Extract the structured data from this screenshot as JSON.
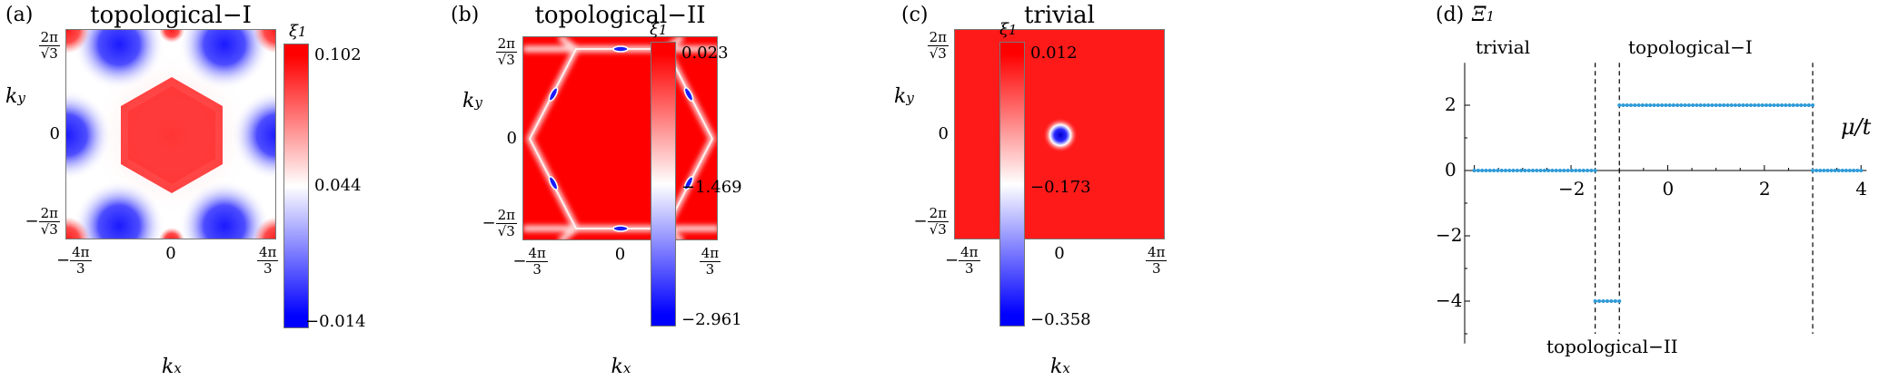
{
  "panels": [
    {
      "label": "(a)",
      "title": "topological−I",
      "cbar_symbol": "ξ",
      "cbar_sub": "1",
      "cbar_ticks": [
        "0.102",
        "0.044",
        "−0.014"
      ]
    },
    {
      "label": "(b)",
      "title": "topological−II",
      "cbar_symbol": "ξ",
      "cbar_sub": "1",
      "cbar_ticks": [
        "0.023",
        "−1.469",
        "−2.961"
      ]
    },
    {
      "label": "(c)",
      "title": "trivial",
      "cbar_symbol": "ξ",
      "cbar_sub": "1",
      "cbar_ticks": [
        "0.012",
        "−0.173",
        "−0.358"
      ]
    }
  ],
  "heatmap_axes": {
    "xlabel": "k",
    "xlabel_sub": "x",
    "ylabel": "k",
    "ylabel_sub": "y",
    "xticks": [
      {
        "sign": "−",
        "num": "4π",
        "den": "3"
      },
      {
        "plain": "0"
      },
      {
        "sign": "",
        "num": "4π",
        "den": "3"
      }
    ],
    "yticks": [
      {
        "sign": "",
        "num": "2π",
        "den": "√3"
      },
      {
        "plain": "0"
      },
      {
        "sign": "−",
        "num": "2π",
        "den": "√3"
      }
    ]
  },
  "panel_d": {
    "label": "(d)",
    "ylabel": "Ξ",
    "ylabel_sub": "1",
    "xlabel": "μ/t",
    "region_labels": [
      "trivial",
      "topological−I",
      "topological−II"
    ],
    "xticks": [
      "−2",
      "0",
      "2",
      "4"
    ],
    "yticks": [
      "2",
      "0",
      "−2",
      "−4"
    ]
  },
  "chart_data": [
    {
      "type": "heatmap",
      "title": "topological−I",
      "xlabel": "k_x",
      "ylabel": "k_y",
      "colorbar_label": "ξ_1",
      "colorbar_range": [
        -0.014,
        0.102
      ],
      "colorbar_mid": 0.044,
      "colors": [
        "#0000ff",
        "#ffffff",
        "#ff0000"
      ]
    },
    {
      "type": "heatmap",
      "title": "topological−II",
      "xlabel": "k_x",
      "ylabel": "k_y",
      "colorbar_label": "ξ_1",
      "colorbar_range": [
        -2.961,
        0.023
      ],
      "colorbar_mid": -1.469,
      "colors": [
        "#0000ff",
        "#ffffff",
        "#ff0000"
      ]
    },
    {
      "type": "heatmap",
      "title": "trivial",
      "xlabel": "k_x",
      "ylabel": "k_y",
      "colorbar_label": "ξ_1",
      "colorbar_range": [
        -0.358,
        0.012
      ],
      "colorbar_mid": -0.173,
      "colors": [
        "#0000ff",
        "#ffffff",
        "#ff0000"
      ]
    },
    {
      "type": "scatter",
      "xlabel": "μ/t",
      "ylabel": "Ξ_1",
      "xlim": [
        -4.2,
        4.0
      ],
      "ylim": [
        -5.3,
        3.3
      ],
      "boundaries": [
        -1.5,
        -1.0,
        3.0
      ],
      "series": [
        {
          "segments": [
            {
              "x_start": -4.0,
              "x_end": -1.5,
              "y": 0
            },
            {
              "x_start": -1.5,
              "x_end": -1.0,
              "y": -4
            },
            {
              "x_start": -1.0,
              "x_end": 3.0,
              "y": 2
            },
            {
              "x_start": 3.0,
              "x_end": 4.0,
              "y": 0
            }
          ],
          "color": "#2f9bd8"
        }
      ]
    }
  ]
}
